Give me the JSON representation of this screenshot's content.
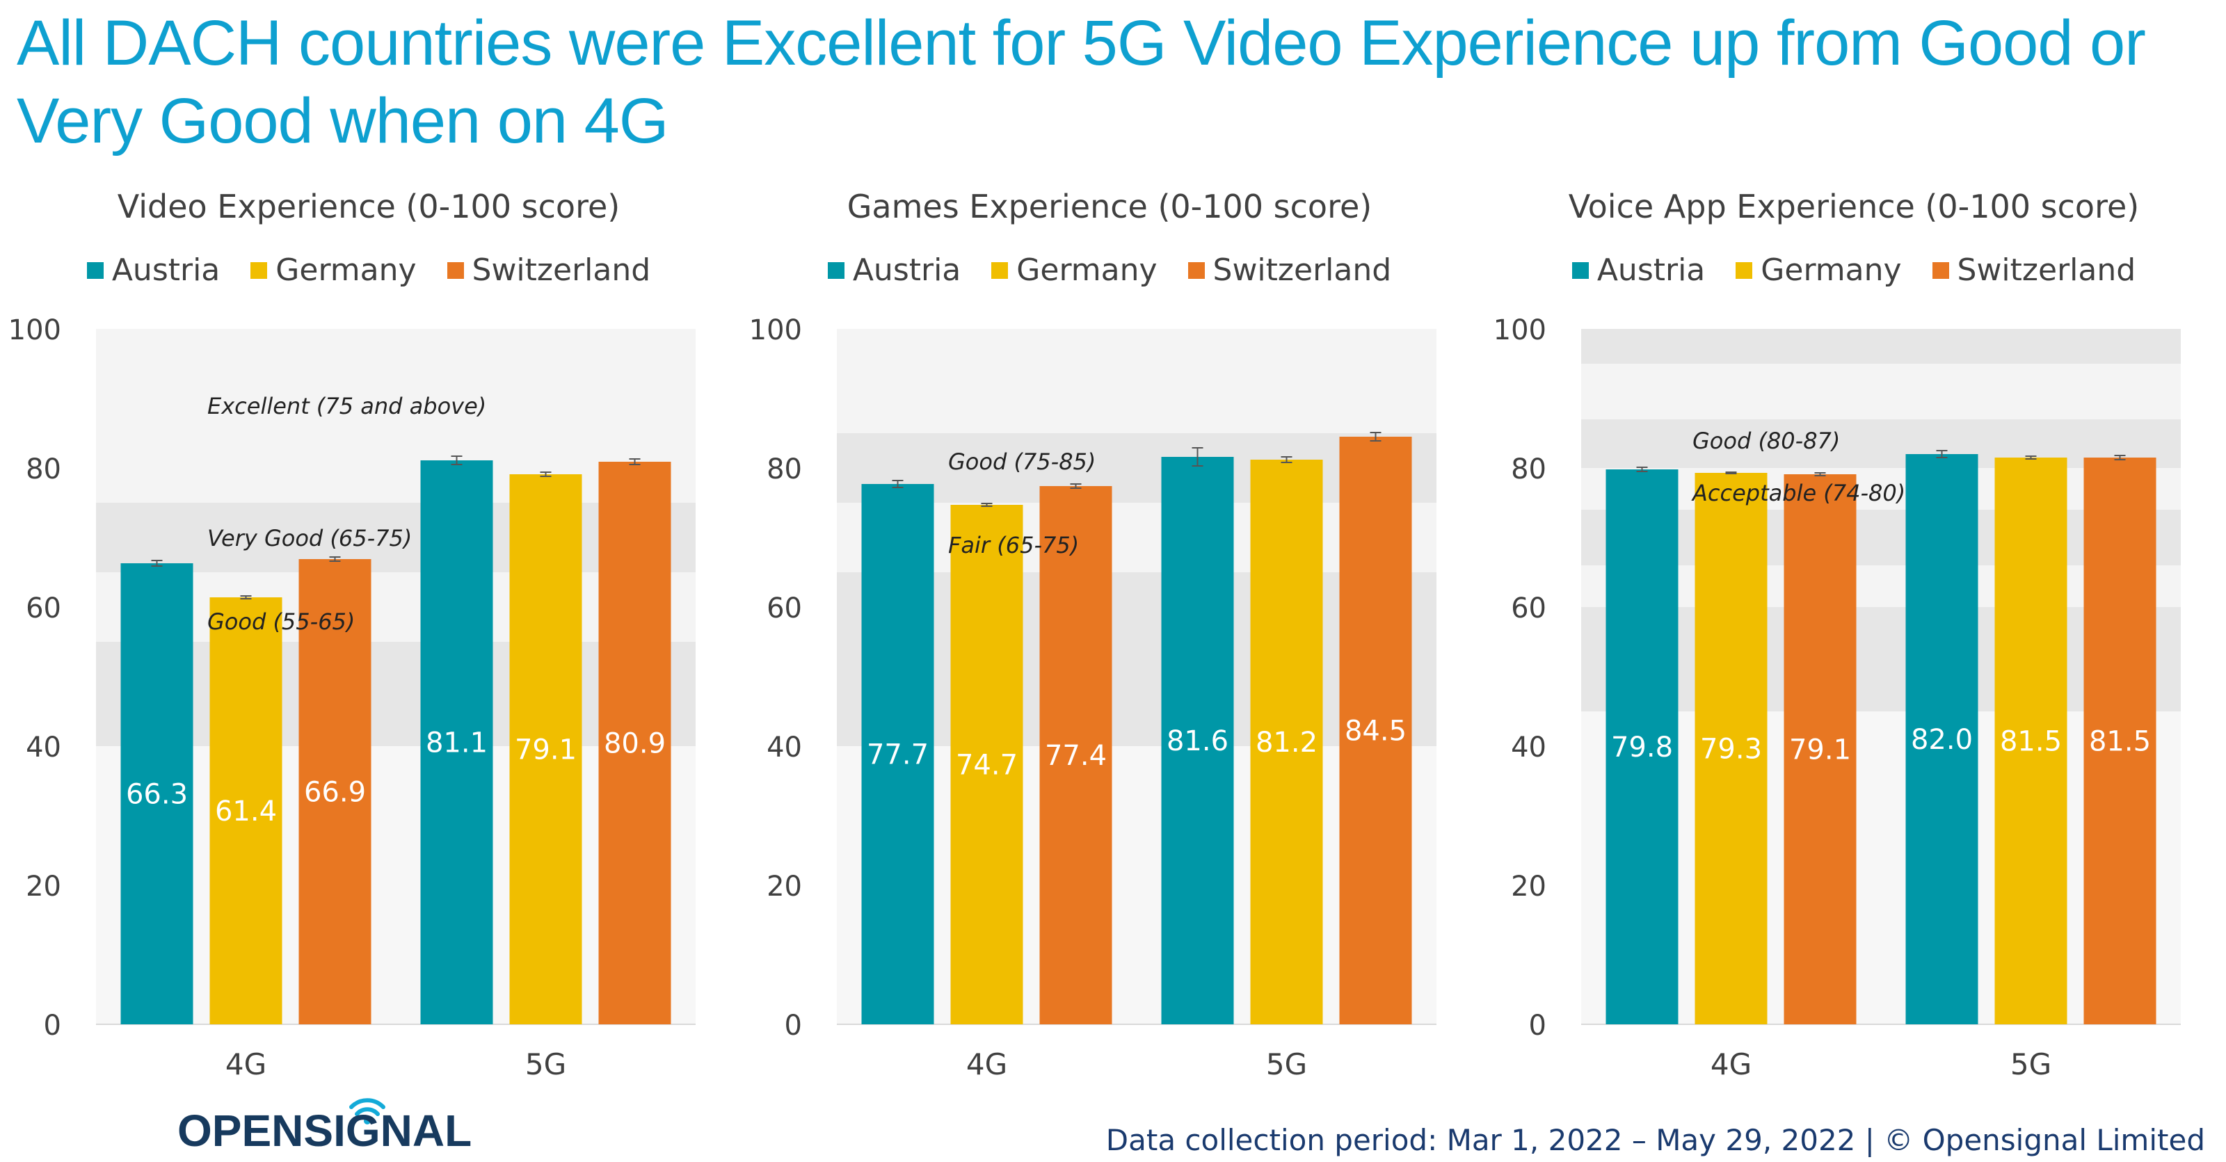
{
  "headline": "All DACH countries were Excellent for 5G Video Experience up from Good or Very Good when on 4G",
  "legend": [
    "Austria",
    "Germany",
    "Switzerland"
  ],
  "colors": {
    "Austria": "#0097a7",
    "Germany": "#f0be00",
    "Switzerland": "#e87722"
  },
  "footer": "Data collection period: Mar 1, 2022 – May 29, 2022 | © Opensignal Limited",
  "logo_text": "OPENSIGNAL",
  "chart_data": [
    {
      "type": "bar",
      "title": "Video Experience (0-100 score)",
      "categories": [
        "4G",
        "5G"
      ],
      "ylim": [
        0,
        100
      ],
      "yticks": [
        0,
        20,
        40,
        60,
        80,
        100
      ],
      "series": [
        {
          "name": "Austria",
          "values": [
            66.3,
            81.1
          ],
          "labels": [
            "66.3",
            "81.1"
          ],
          "errors": [
            0.4,
            0.6
          ]
        },
        {
          "name": "Germany",
          "values": [
            61.4,
            79.1
          ],
          "labels": [
            "61.4",
            "79.1"
          ],
          "errors": [
            0.2,
            0.3
          ]
        },
        {
          "name": "Switzerland",
          "values": [
            66.9,
            80.9
          ],
          "labels": [
            "66.9",
            "80.9"
          ],
          "errors": [
            0.3,
            0.4
          ]
        }
      ],
      "bands": [
        {
          "from": 75,
          "to": 100,
          "shade": "light",
          "label": "Excellent (75 and above)",
          "label_at": 89
        },
        {
          "from": 65,
          "to": 75,
          "shade": "mid",
          "label": "Very Good (65-75)",
          "label_at": 70
        },
        {
          "from": 55,
          "to": 65,
          "shade": "light",
          "label": "Good (55-65)",
          "label_at": 58
        },
        {
          "from": 40,
          "to": 55,
          "shade": "mid",
          "label": "",
          "label_at": 0
        },
        {
          "from": 0,
          "to": 40,
          "shade": "lighter",
          "label": "",
          "label_at": 0
        }
      ]
    },
    {
      "type": "bar",
      "title": "Games Experience (0-100 score)",
      "categories": [
        "4G",
        "5G"
      ],
      "ylim": [
        0,
        100
      ],
      "yticks": [
        0,
        20,
        40,
        60,
        80,
        100
      ],
      "series": [
        {
          "name": "Austria",
          "values": [
            77.7,
            81.6
          ],
          "labels": [
            "77.7",
            "81.6"
          ],
          "errors": [
            0.5,
            1.3
          ]
        },
        {
          "name": "Germany",
          "values": [
            74.7,
            81.2
          ],
          "labels": [
            "74.7",
            "81.2"
          ],
          "errors": [
            0.2,
            0.4
          ]
        },
        {
          "name": "Switzerland",
          "values": [
            77.4,
            84.5
          ],
          "labels": [
            "77.4",
            "84.5"
          ],
          "errors": [
            0.3,
            0.6
          ]
        }
      ],
      "bands": [
        {
          "from": 85,
          "to": 100,
          "shade": "light",
          "label": "",
          "label_at": 0
        },
        {
          "from": 75,
          "to": 85,
          "shade": "mid",
          "label": "Good (75-85)",
          "label_at": 81
        },
        {
          "from": 65,
          "to": 75,
          "shade": "light",
          "label": "Fair (65-75)",
          "label_at": 69
        },
        {
          "from": 40,
          "to": 65,
          "shade": "mid",
          "label": "",
          "label_at": 0
        },
        {
          "from": 0,
          "to": 40,
          "shade": "lighter",
          "label": "",
          "label_at": 0
        }
      ]
    },
    {
      "type": "bar",
      "title": "Voice App Experience (0-100 score)",
      "categories": [
        "4G",
        "5G"
      ],
      "ylim": [
        0,
        100
      ],
      "yticks": [
        0,
        20,
        40,
        60,
        80,
        100
      ],
      "series": [
        {
          "name": "Austria",
          "values": [
            79.8,
            82.0
          ],
          "labels": [
            "79.8",
            "82.0"
          ],
          "errors": [
            0.3,
            0.5
          ]
        },
        {
          "name": "Germany",
          "values": [
            79.3,
            81.5
          ],
          "labels": [
            "79.3",
            "81.5"
          ],
          "errors": [
            0.1,
            0.2
          ]
        },
        {
          "name": "Switzerland",
          "values": [
            79.1,
            81.5
          ],
          "labels": [
            "79.1",
            "81.5"
          ],
          "errors": [
            0.2,
            0.3
          ]
        }
      ],
      "bands": [
        {
          "from": 95,
          "to": 100,
          "shade": "mid",
          "label": "",
          "label_at": 0
        },
        {
          "from": 87,
          "to": 95,
          "shade": "light",
          "label": "",
          "label_at": 0
        },
        {
          "from": 80,
          "to": 87,
          "shade": "mid",
          "label": "Good (80-87)",
          "label_at": 84
        },
        {
          "from": 74,
          "to": 80,
          "shade": "light",
          "label": "Acceptable (74-80)",
          "label_at": 76.5
        },
        {
          "from": 66,
          "to": 74,
          "shade": "mid",
          "label": "",
          "label_at": 0
        },
        {
          "from": 60,
          "to": 66,
          "shade": "light",
          "label": "",
          "label_at": 0
        },
        {
          "from": 45,
          "to": 60,
          "shade": "mid",
          "label": "",
          "label_at": 0
        },
        {
          "from": 0,
          "to": 45,
          "shade": "lighter",
          "label": "",
          "label_at": 0
        }
      ]
    }
  ]
}
